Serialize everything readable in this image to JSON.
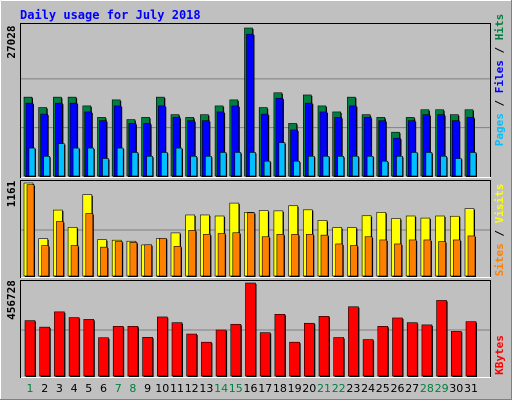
{
  "chart_data": [
    {
      "type": "bar",
      "title": "Daily usage for July 2018",
      "panel": "top",
      "categories": [
        "1",
        "2",
        "3",
        "4",
        "5",
        "6",
        "7",
        "8",
        "9",
        "10",
        "11",
        "12",
        "13",
        "14",
        "15",
        "16",
        "17",
        "18",
        "19",
        "20",
        "21",
        "22",
        "23",
        "24",
        "25",
        "26",
        "27",
        "28",
        "29",
        "30",
        "31"
      ],
      "ylim": [
        0,
        27028
      ],
      "ytick_label": "27028",
      "ylabel_parts": [
        "Pages",
        " / ",
        "Files",
        " / ",
        "Hits"
      ],
      "series": [
        {
          "name": "Hits",
          "color": "#008040",
          "values": [
            14400,
            12500,
            14400,
            14400,
            12800,
            10700,
            13900,
            10300,
            10700,
            14400,
            11200,
            10700,
            11200,
            12800,
            13900,
            27028,
            12500,
            15200,
            9600,
            14800,
            12800,
            11700,
            14400,
            11200,
            10700,
            8000,
            10700,
            12100,
            12100,
            11200,
            12100
          ]
        },
        {
          "name": "Files",
          "color": "#0000ff",
          "values": [
            13300,
            11300,
            13300,
            13300,
            11700,
            10100,
            12800,
            9600,
            9600,
            12800,
            10700,
            10100,
            10100,
            11700,
            12800,
            25900,
            11300,
            14200,
            8400,
            13300,
            11700,
            10700,
            12800,
            10700,
            10100,
            6900,
            10100,
            11200,
            11200,
            10100,
            10700
          ]
        },
        {
          "name": "Pages",
          "color": "#00c0ff",
          "values": [
            5100,
            3600,
            5900,
            5100,
            5100,
            3200,
            5100,
            4300,
            3600,
            4300,
            5100,
            3600,
            3600,
            4300,
            4300,
            4300,
            2700,
            6100,
            2700,
            3600,
            3600,
            3600,
            3600,
            3600,
            2700,
            3600,
            4300,
            4300,
            3600,
            3200,
            4300
          ]
        }
      ],
      "grid": true
    },
    {
      "type": "bar",
      "panel": "middle",
      "categories": [
        "1",
        "2",
        "3",
        "4",
        "5",
        "6",
        "7",
        "8",
        "9",
        "10",
        "11",
        "12",
        "13",
        "14",
        "15",
        "16",
        "17",
        "18",
        "19",
        "20",
        "21",
        "22",
        "23",
        "24",
        "25",
        "26",
        "27",
        "28",
        "29",
        "30",
        "31"
      ],
      "ylim": [
        0,
        1161
      ],
      "ytick_label": "1161",
      "ylabel_parts": [
        "Sites",
        " / ",
        "Visits"
      ],
      "series": [
        {
          "name": "Visits",
          "color": "#ffff00",
          "values": [
            1161,
            466,
            823,
            607,
            1015,
            453,
            447,
            434,
            388,
            466,
            538,
            762,
            762,
            749,
            910,
            794,
            817,
            813,
            877,
            826,
            693,
            604,
            604,
            752,
            794,
            717,
            749,
            723,
            749,
            746,
            841
          ]
        },
        {
          "name": "Sites",
          "color": "#ff8000",
          "values": [
            1140,
            380,
            680,
            380,
            780,
            360,
            430,
            420,
            390,
            470,
            370,
            570,
            520,
            530,
            540,
            790,
            490,
            520,
            520,
            520,
            510,
            400,
            380,
            490,
            450,
            400,
            450,
            450,
            430,
            450,
            500
          ]
        }
      ],
      "grid": true
    },
    {
      "type": "bar",
      "panel": "bottom",
      "categories": [
        "1",
        "2",
        "3",
        "4",
        "5",
        "6",
        "7",
        "8",
        "9",
        "10",
        "11",
        "12",
        "13",
        "14",
        "15",
        "16",
        "17",
        "18",
        "19",
        "20",
        "21",
        "22",
        "23",
        "24",
        "25",
        "26",
        "27",
        "28",
        "29",
        "30",
        "31"
      ],
      "ylim": [
        0,
        456728
      ],
      "ytick_label": "456728",
      "ylabel_parts": [
        "KBytes"
      ],
      "series": [
        {
          "name": "KBytes",
          "color": "#ff0000",
          "values": [
            272000,
            240000,
            315000,
            287000,
            278000,
            188000,
            244000,
            244000,
            190000,
            290000,
            262000,
            206000,
            166000,
            226000,
            254000,
            456728,
            213000,
            303000,
            166000,
            259000,
            293000,
            189000,
            340000,
            179000,
            244000,
            285000,
            262000,
            251000,
            371000,
            219000,
            267000
          ]
        }
      ],
      "grid": true
    }
  ],
  "x_label_colors": {
    "weekday": "#000000",
    "weekend": "#008040"
  },
  "weekend_days": [
    "1",
    "7",
    "8",
    "14",
    "15",
    "21",
    "22",
    "28",
    "29"
  ]
}
